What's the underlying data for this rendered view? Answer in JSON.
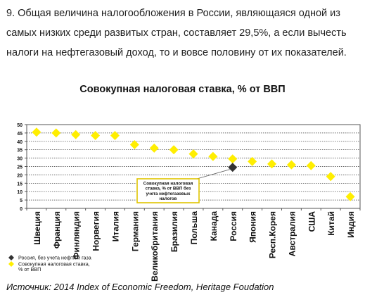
{
  "paragraph": "9. Общая величина налогообложения в России, являющаяся одной из самых низких среди развитых стран, составляет 29,5%, а если вычесть налоги на нефтегазовый доход, то и вовсе половину от их показателей.",
  "source": "Источник: 2014 Index of Economic Freedom, Heritage Foudation",
  "chart_data": {
    "type": "scatter",
    "title": "Совокупная налоговая ставка, % от ВВП",
    "xlabel": "",
    "ylabel": "",
    "ylim": [
      0,
      50
    ],
    "yticks": [
      0,
      5,
      10,
      15,
      20,
      25,
      30,
      35,
      40,
      45,
      50
    ],
    "grid": true,
    "categories": [
      "Швеция",
      "Франция",
      "Финляндия",
      "Норвегия",
      "Италия",
      "Германия",
      "Великобритания",
      "Бразилия",
      "Польша",
      "Канада",
      "Россия",
      "Япония",
      "Респ.Корея",
      "Австралия",
      "США",
      "Китай",
      "Индия"
    ],
    "series": [
      {
        "name": "Совокупная налоговая ставка, % от ВВП",
        "marker": "diamond",
        "color": "#ffee00",
        "values": [
          45.5,
          45,
          44,
          43.5,
          43.5,
          38,
          36,
          35,
          32.5,
          31,
          29.5,
          28,
          26.5,
          26,
          25.5,
          19,
          7
        ]
      },
      {
        "name": "Россия, без учета нефти и газа",
        "marker": "diamond",
        "color": "#333333",
        "category": "Россия",
        "value": 24.5
      }
    ],
    "annotation": {
      "text_lines": [
        "Совокупная налоговая",
        "ставка, % от ВВП без",
        "учета нефтегазовых",
        "налогов"
      ]
    },
    "legend": {
      "position": "bottom-left",
      "entries": [
        {
          "label_lines": [
            "Россия, без учета нефти и газа"
          ],
          "color": "#333333"
        },
        {
          "label_lines": [
            "Совокупная налоговая ставка,",
            "% от ВВП"
          ],
          "color": "#ffee00"
        }
      ]
    }
  }
}
